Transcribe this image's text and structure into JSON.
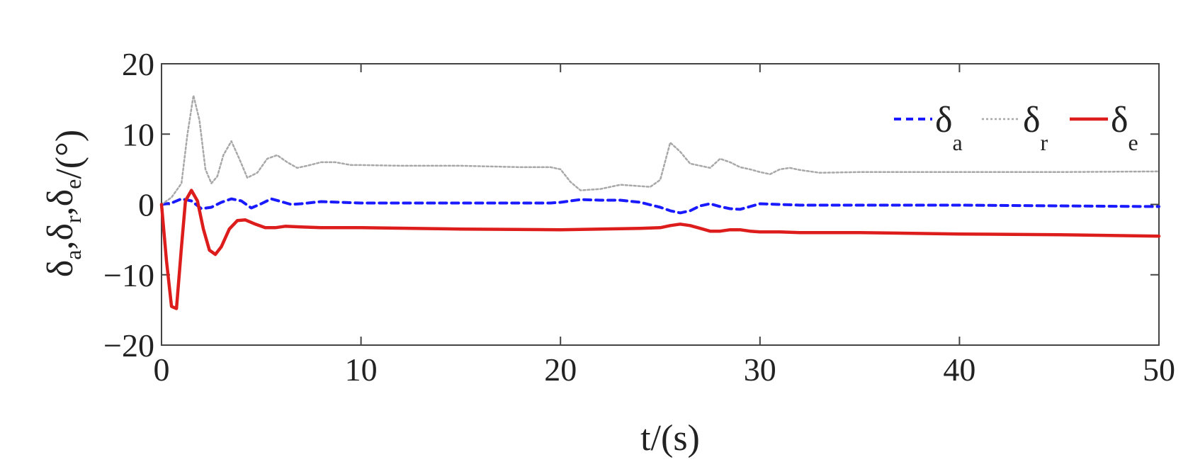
{
  "chart_data": {
    "type": "line",
    "title": "",
    "xlabel": "t/(s)",
    "ylabel": {
      "base": "δ",
      "parts": [
        {
          "sub": "a",
          "sep": ","
        },
        {
          "sub": "r",
          "sep": ","
        },
        {
          "sub": "e",
          "sep": ""
        }
      ],
      "unit": "/(°)"
    },
    "xlim": [
      0,
      50
    ],
    "ylim": [
      -20,
      20
    ],
    "xticks": [
      0,
      10,
      20,
      30,
      40,
      50
    ],
    "yticks": [
      20,
      10,
      0,
      -10,
      -20
    ],
    "ytick_labels": [
      "20",
      "10",
      "0",
      "−10",
      "−20"
    ],
    "grid": false,
    "legend": {
      "position": "top-right",
      "orientation": "horizontal"
    },
    "series": [
      {
        "name": "δa",
        "symbol": "δ",
        "subscript": "a",
        "color": "#1a1aff",
        "style": "dashed",
        "x": [
          0,
          0.5,
          1.0,
          1.5,
          2.0,
          2.5,
          3.0,
          3.5,
          4.0,
          4.5,
          5.0,
          5.5,
          6.0,
          6.5,
          7.0,
          8,
          9,
          10,
          12,
          15,
          18,
          19.5,
          20,
          21,
          22,
          23,
          24,
          25,
          25.5,
          26,
          26.5,
          27,
          27.5,
          28,
          28.5,
          29,
          29.5,
          30,
          31,
          32,
          35,
          40,
          45,
          50
        ],
        "y": [
          0,
          0.2,
          0.8,
          0.5,
          -0.6,
          -0.4,
          0.3,
          0.8,
          0.5,
          -0.5,
          0.1,
          0.8,
          0.4,
          0.0,
          0.1,
          0.4,
          0.3,
          0.2,
          0.2,
          0.2,
          0.2,
          0.2,
          0.3,
          0.7,
          0.6,
          0.6,
          0.3,
          -0.4,
          -0.9,
          -1.2,
          -0.9,
          -0.2,
          0.1,
          -0.3,
          -0.6,
          -0.7,
          -0.3,
          0.1,
          0.0,
          -0.1,
          -0.1,
          -0.1,
          -0.2,
          -0.3
        ]
      },
      {
        "name": "δr",
        "symbol": "δ",
        "subscript": "r",
        "color": "#a8a8a8",
        "style": "dotted",
        "x": [
          0,
          0.5,
          1.0,
          1.3,
          1.6,
          1.9,
          2.2,
          2.5,
          2.8,
          3.1,
          3.5,
          3.9,
          4.3,
          4.8,
          5.3,
          5.8,
          6.3,
          6.8,
          7.3,
          8,
          8.7,
          9.5,
          10,
          12,
          15,
          18,
          19.5,
          20,
          20.5,
          21,
          22,
          23,
          24,
          24.5,
          25,
          25.5,
          26,
          26.5,
          27,
          27.5,
          28,
          28.5,
          29,
          29.5,
          30,
          30.5,
          31,
          31.5,
          32,
          33,
          35,
          40,
          45,
          50
        ],
        "y": [
          0,
          1,
          3,
          10,
          15.5,
          12,
          5,
          3.0,
          4,
          7,
          9,
          6.5,
          3.8,
          4.5,
          6.5,
          7,
          6,
          5.2,
          5.5,
          6.0,
          6.0,
          5.6,
          5.6,
          5.5,
          5.5,
          5.3,
          5.3,
          5.0,
          3.2,
          2.0,
          2.2,
          2.8,
          2.6,
          2.5,
          3.5,
          8.8,
          7.5,
          5.8,
          5.5,
          5.2,
          6.5,
          6.0,
          5.3,
          5.0,
          4.6,
          4.3,
          5.0,
          5.2,
          4.9,
          4.5,
          4.6,
          4.6,
          4.6,
          4.7
        ]
      },
      {
        "name": "δe",
        "symbol": "δ",
        "subscript": "e",
        "color": "#dd1c1c",
        "style": "solid",
        "x": [
          0,
          0.25,
          0.5,
          0.75,
          1.0,
          1.2,
          1.5,
          1.8,
          2.1,
          2.4,
          2.7,
          3.0,
          3.4,
          3.8,
          4.2,
          4.7,
          5.2,
          5.7,
          6.2,
          7,
          8,
          9,
          10,
          15,
          20,
          22,
          24,
          25,
          25.5,
          26,
          26.5,
          27,
          27.5,
          28,
          28.5,
          29,
          29.5,
          30,
          31,
          32,
          35,
          40,
          45,
          50
        ],
        "y": [
          0,
          -8,
          -14.5,
          -14.8,
          -6,
          0.5,
          2,
          0.5,
          -3.5,
          -6.5,
          -7.1,
          -6,
          -3.5,
          -2.3,
          -2.2,
          -2.8,
          -3.3,
          -3.3,
          -3.1,
          -3.2,
          -3.3,
          -3.3,
          -3.3,
          -3.5,
          -3.6,
          -3.5,
          -3.4,
          -3.3,
          -3.0,
          -2.8,
          -3.0,
          -3.4,
          -3.8,
          -3.8,
          -3.6,
          -3.6,
          -3.8,
          -3.9,
          -3.9,
          -4.0,
          -4.0,
          -4.2,
          -4.3,
          -4.5
        ]
      }
    ]
  }
}
